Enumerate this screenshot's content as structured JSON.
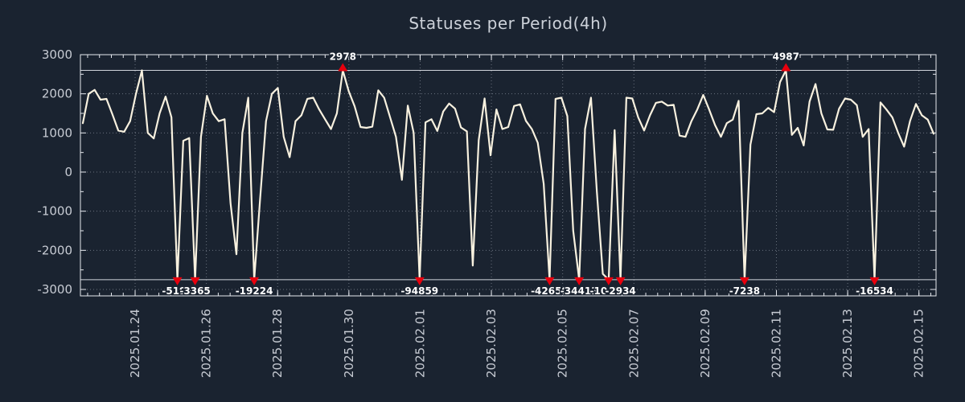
{
  "title": "Statuses per Period(4h)",
  "colors": {
    "background": "#1a2330",
    "line": "#f8f1df",
    "grid": "#aab1bd",
    "border": "#e5e8ee",
    "clip_line": "#e5e8ee",
    "axis_text": "#c7cbd3",
    "marker": "#e8000d",
    "marker_label": "#ffffff",
    "title_text": "#ccd1d9"
  },
  "chart_data": {
    "type": "line",
    "title": "Statuses per Period(4h)",
    "series_name": "statuses",
    "period": "4h",
    "grid": "dotted",
    "legend": "none",
    "ylim": [
      -3164,
      3000
    ],
    "y_ticks": [
      3000,
      2000,
      1000,
      0,
      -1000,
      -2000,
      -3000
    ],
    "clip": {
      "upper": 2600,
      "lower": -2750
    },
    "x_ticks": {
      "labels": [
        "2025.01.24",
        "2025.01.26",
        "2025.01.28",
        "2025.01.30",
        "2025.02.01",
        "2025.02.03",
        "2025.02.05",
        "2025.02.07",
        "2025.02.09",
        "2025.02.11",
        "2025.02.13",
        "2025.02.15"
      ],
      "first_index": 8.85,
      "step_index": 12.06,
      "minor_step_index": 2.01
    },
    "out_of_range_labels": [
      "2978",
      "4987",
      "-5193",
      "-3365",
      "-19224",
      "-94859",
      "-42659",
      "-34413",
      "-10434",
      "-2934",
      "-7238",
      "-16534"
    ],
    "values": [
      1250,
      2000,
      2100,
      1850,
      1870,
      1480,
      1060,
      1030,
      1300,
      2000,
      2600,
      1000,
      860,
      1500,
      1930,
      1400,
      -5193,
      800,
      870,
      -3365,
      900,
      1950,
      1500,
      1300,
      1350,
      -800,
      -2100,
      1000,
      1900,
      -19224,
      -700,
      1300,
      2000,
      2150,
      900,
      380,
      1300,
      1450,
      1870,
      1900,
      1600,
      1350,
      1100,
      1500,
      2978,
      2070,
      1680,
      1150,
      1130,
      1160,
      2090,
      1900,
      1400,
      900,
      -200,
      1700,
      1000,
      -94859,
      1270,
      1350,
      1050,
      1550,
      1750,
      1620,
      1140,
      1040,
      -2390,
      815,
      1880,
      430,
      1600,
      1100,
      1150,
      1690,
      1730,
      1310,
      1100,
      750,
      -300,
      -42659,
      1870,
      1900,
      1430,
      -1500,
      -34413,
      1100,
      1900,
      -500,
      -2600,
      -10434,
      1070,
      -2934,
      1900,
      1880,
      1400,
      1060,
      1450,
      1770,
      1800,
      1700,
      1720,
      930,
      900,
      1300,
      1600,
      1970,
      1600,
      1200,
      900,
      1250,
      1340,
      1820,
      -7238,
      700,
      1480,
      1500,
      1640,
      1530,
      2300,
      4987,
      950,
      1130,
      680,
      1800,
      2250,
      1500,
      1090,
      1080,
      1620,
      1880,
      1850,
      1710,
      900,
      1100,
      -16534,
      1780,
      1600,
      1400,
      1000,
      650,
      1300,
      1740,
      1450,
      1340,
      980
    ]
  }
}
